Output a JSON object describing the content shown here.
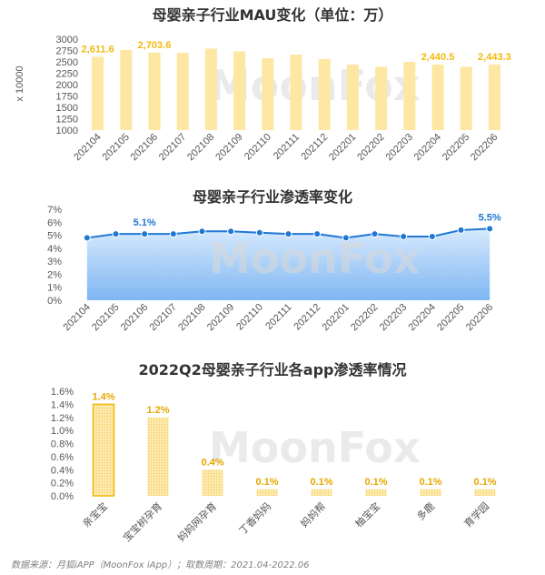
{
  "chart_data": [
    {
      "type": "bar",
      "title": "母婴亲子行业MAU变化（单位：万）",
      "ylabel": "x 10000",
      "ylim": [
        1000,
        3000
      ],
      "yticks": [
        "1000",
        "1250",
        "1500",
        "1750",
        "2000",
        "2250",
        "2500",
        "2750",
        "3000"
      ],
      "categories": [
        "202104",
        "202105",
        "202106",
        "202107",
        "202108",
        "202109",
        "202110",
        "202111",
        "202112",
        "202201",
        "202202",
        "202203",
        "202204",
        "202205",
        "202206"
      ],
      "values": [
        2611.6,
        2760,
        2703.6,
        2700,
        2790,
        2730,
        2580,
        2660,
        2560,
        2440,
        2390,
        2500,
        2440.5,
        2390,
        2443.3
      ],
      "data_labels": [
        {
          "index": 0,
          "text": "2,611.6"
        },
        {
          "index": 2,
          "text": "2,703.6"
        },
        {
          "index": 12,
          "text": "2,440.5"
        },
        {
          "index": 14,
          "text": "2,443.3"
        }
      ],
      "colors": {
        "bar": "#fde7a2",
        "label": "#f2b90f"
      }
    },
    {
      "type": "area",
      "title": "母婴亲子行业渗透率变化",
      "ylim": [
        0,
        7
      ],
      "yticks": [
        "0%",
        "1%",
        "2%",
        "3%",
        "4%",
        "5%",
        "6%",
        "7%"
      ],
      "categories": [
        "202104",
        "202105",
        "202106",
        "202107",
        "202108",
        "202109",
        "202110",
        "202111",
        "202112",
        "202201",
        "202202",
        "202203",
        "202204",
        "202205",
        "202206"
      ],
      "values": [
        4.8,
        5.1,
        5.1,
        5.1,
        5.3,
        5.3,
        5.2,
        5.1,
        5.1,
        4.8,
        5.1,
        4.9,
        4.9,
        5.4,
        5.5
      ],
      "data_labels": [
        {
          "index": 2,
          "text": "5.1%"
        },
        {
          "index": 14,
          "text": "5.5%"
        }
      ],
      "colors": {
        "line": "#1f77d4",
        "fill_top": "#d7eafd",
        "fill_bottom": "#7fb6f3",
        "label": "#1f77d4"
      }
    },
    {
      "type": "bar",
      "title": "2022Q2母婴亲子行业各app渗透率情况",
      "ylim": [
        0,
        1.6
      ],
      "yticks": [
        "0.0%",
        "0.2%",
        "0.4%",
        "0.6%",
        "0.8%",
        "1.0%",
        "1.2%",
        "1.4%",
        "1.6%"
      ],
      "categories": [
        "亲宝宝",
        "宝宝树孕育",
        "妈妈网孕育",
        "丁香妈妈",
        "妈妈帮",
        "柚宝宝",
        "多鹿",
        "育学园"
      ],
      "values": [
        1.4,
        1.2,
        0.4,
        0.1,
        0.1,
        0.1,
        0.1,
        0.1
      ],
      "data_labels": [
        "1.4%",
        "1.2%",
        "0.4%",
        "0.1%",
        "0.1%",
        "0.1%",
        "0.1%",
        "0.1%"
      ],
      "colors": {
        "bar": "#fbe09a",
        "bar_edge": "#f2b90f",
        "label": "#e6a800"
      }
    }
  ],
  "watermark": "MoonFox",
  "source_note": "数据来源：月狐iAPP（MoonFox iApp）；取数周期：2021.04-2022.06"
}
